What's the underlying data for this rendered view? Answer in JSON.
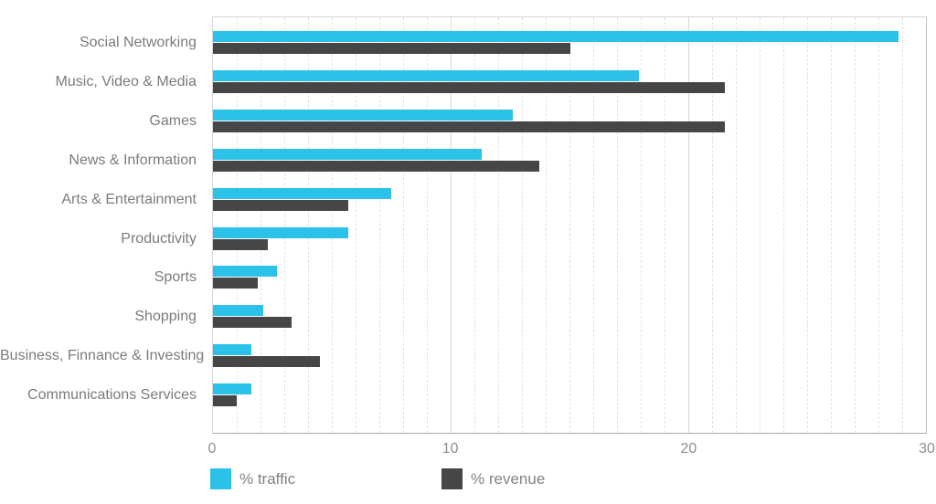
{
  "chart_data": {
    "type": "bar",
    "orientation": "horizontal",
    "title": "",
    "xlabel": "",
    "ylabel": "",
    "xlim": [
      0,
      30
    ],
    "x_ticks": [
      "0",
      "10",
      "20",
      "30"
    ],
    "grid": "minor dashed vertical lines every 1 unit; solid vertical lines at 10 and 20; plot area bordered",
    "legend_position": "bottom",
    "categories": [
      "Social Networking",
      "Music, Video & Media",
      "Games",
      "News & Information",
      "Arts & Entertainment",
      "Productivity",
      "Sports",
      "Shopping",
      "Business, Finnance & Investing",
      "Communications Services"
    ],
    "series": [
      {
        "name": "% traffic",
        "color": "#2bc1e9",
        "values": [
          28.8,
          17.9,
          12.6,
          11.3,
          7.5,
          5.7,
          2.7,
          2.1,
          1.6,
          1.6
        ]
      },
      {
        "name": "% revenue",
        "color": "#464646",
        "values": [
          15.0,
          21.5,
          21.5,
          13.7,
          5.7,
          2.3,
          1.9,
          3.3,
          4.5,
          1.0
        ]
      }
    ]
  },
  "legend": {
    "items": [
      {
        "label": "% traffic",
        "color": "#2bc1e9"
      },
      {
        "label": "% revenue",
        "color": "#464646"
      }
    ]
  },
  "colors": {
    "traffic": "#2bc1e9",
    "revenue": "#464646",
    "category_label": "#7b7b7b",
    "tick_label": "#8e8e8e",
    "grid_minor": "#e2e2e2",
    "grid_major": "#d8d8d8",
    "plot_border": "#d4d4d4",
    "background": "#ffffff"
  }
}
